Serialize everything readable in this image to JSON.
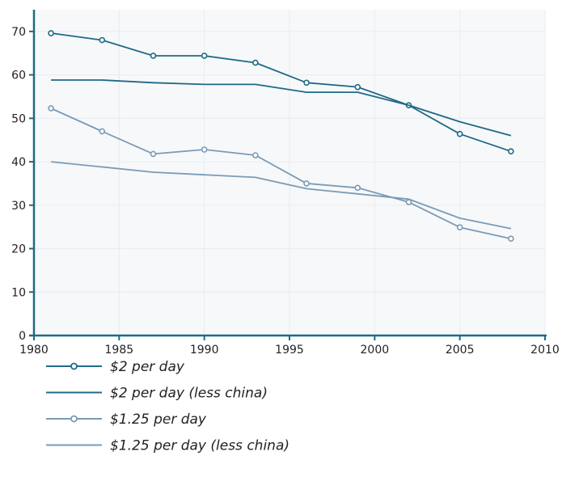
{
  "chart_data": {
    "type": "line",
    "title": "",
    "xlabel": "",
    "ylabel": "",
    "xlim": [
      1980,
      2010
    ],
    "ylim": [
      0,
      75
    ],
    "x_ticks": [
      1980,
      1985,
      1990,
      1995,
      2000,
      2005,
      2010
    ],
    "y_ticks": [
      0,
      10,
      20,
      30,
      40,
      50,
      60,
      70
    ],
    "grid": true,
    "legend_position": "bottom",
    "series": [
      {
        "name": "$2 per day",
        "color": "#1f6a85",
        "markers": true,
        "x": [
          1981,
          1984,
          1987,
          1990,
          1993,
          1996,
          1999,
          2002,
          2005,
          2008
        ],
        "values": [
          69.6,
          68.0,
          64.4,
          64.4,
          62.8,
          58.2,
          57.2,
          53.0,
          46.4,
          42.4
        ]
      },
      {
        "name": "$2 per day (less china)",
        "color": "#1f6a85",
        "markers": false,
        "x": [
          1981,
          1984,
          1987,
          1990,
          1993,
          1996,
          1999,
          2002,
          2005,
          2008
        ],
        "values": [
          58.8,
          58.8,
          58.2,
          57.8,
          57.8,
          56.0,
          56.0,
          53.0,
          49.2,
          46.0
        ]
      },
      {
        "name": "$1.25 per day",
        "color": "#7a9bb7",
        "markers": true,
        "x": [
          1981,
          1984,
          1987,
          1990,
          1993,
          1996,
          1999,
          2002,
          2005,
          2008
        ],
        "values": [
          52.3,
          47.0,
          41.8,
          42.8,
          41.5,
          35.0,
          34.0,
          30.7,
          24.9,
          22.3
        ]
      },
      {
        "name": "$1.25 per day (less china)",
        "color": "#7a9bb7",
        "markers": false,
        "x": [
          1981,
          1984,
          1987,
          1990,
          1993,
          1996,
          1999,
          2002,
          2005,
          2008
        ],
        "values": [
          40.0,
          38.8,
          37.6,
          37.0,
          36.4,
          33.8,
          32.6,
          31.4,
          27.0,
          24.6
        ]
      }
    ]
  }
}
